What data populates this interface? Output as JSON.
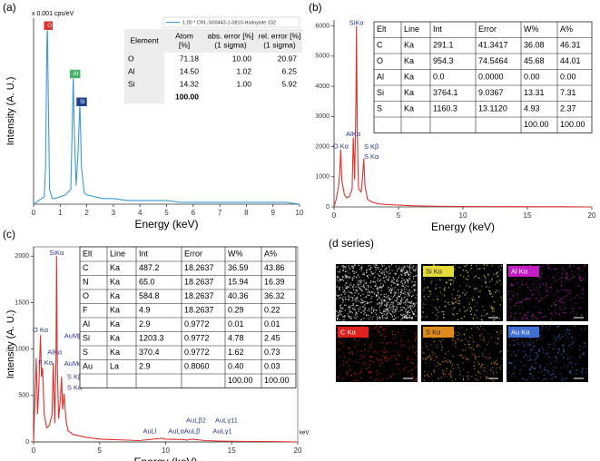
{
  "chart_data": [
    {
      "type": "line",
      "panel": "(a)",
      "y_unit": "x 0.001 cps/eV",
      "x_label": "Energy (keV)",
      "y_label": "Intensity (A. U.)",
      "x": [
        0,
        0.1,
        0.2,
        0.3,
        0.4,
        0.45,
        0.5,
        0.52,
        0.55,
        0.6,
        0.7,
        0.8,
        1.0,
        1.2,
        1.4,
        1.45,
        1.49,
        1.53,
        1.6,
        1.68,
        1.74,
        1.8,
        1.9,
        2.0,
        2.3,
        2.6,
        3.0,
        3.5,
        4.0,
        4.5,
        5.0,
        5.5,
        6.0,
        6.5,
        7.0,
        7.5,
        8.0,
        8.5,
        9.0,
        9.5,
        10
      ],
      "series": [
        {
          "name": "1.00 * CRL-S00443-1-0810-Halloysite 232",
          "color": "#3a9bd5",
          "values": [
            0,
            1,
            2,
            3,
            4,
            20,
            85,
            96,
            60,
            8,
            3,
            3,
            4,
            5,
            8,
            40,
            70,
            40,
            10,
            30,
            55,
            20,
            6,
            5,
            4,
            3,
            3,
            2,
            2,
            2,
            2,
            1,
            1,
            1,
            1,
            1,
            1,
            1,
            1,
            1,
            0
          ]
        }
      ],
      "xlim": [
        0,
        10
      ],
      "xticks": [
        0,
        1,
        2,
        3,
        4,
        5,
        6,
        7,
        8,
        9,
        10
      ],
      "ylim": [
        0,
        100
      ],
      "annotations": [
        {
          "text": "O",
          "x": 0.52,
          "y": 96,
          "color": "#e0302c"
        },
        {
          "text": "Al",
          "x": 1.49,
          "y": 70,
          "color": "#49b36a"
        },
        {
          "text": "Si",
          "x": 1.74,
          "y": 55,
          "color": "#1f3f8f"
        }
      ],
      "table": {
        "columns": [
          [
            "Element"
          ],
          [
            "Atom",
            "[%]"
          ],
          [
            "abs. error [%]",
            "(1 sigma)"
          ],
          [
            "rel. error [%]",
            "(1 sigma)"
          ]
        ],
        "rows": [
          [
            "O",
            "71.18",
            "10.00",
            "20.97"
          ],
          [
            "Al",
            "14.50",
            "1.02",
            "6.25"
          ],
          [
            "Si",
            "14.32",
            "1.00",
            "5.92"
          ],
          [
            null,
            "100.00",
            null,
            null
          ]
        ]
      }
    },
    {
      "type": "line",
      "panel": "(b)",
      "x_label": "Energy (keV)",
      "x": [
        0,
        0.2,
        0.35,
        0.45,
        0.52,
        0.6,
        0.8,
        1.0,
        1.2,
        1.4,
        1.49,
        1.6,
        1.7,
        1.74,
        1.8,
        1.9,
        2.1,
        2.2,
        2.3,
        2.4,
        2.6,
        3.0,
        3.5,
        4,
        5,
        6,
        7,
        8,
        10,
        12,
        14,
        16,
        18,
        20
      ],
      "series": [
        {
          "name": "spectrum",
          "color": "#e0302c",
          "values": [
            0,
            300,
            700,
            1200,
            1900,
            900,
            400,
            300,
            350,
            600,
            2300,
            900,
            3500,
            6000,
            2500,
            600,
            500,
            900,
            1600,
            700,
            250,
            150,
            100,
            80,
            60,
            40,
            30,
            20,
            15,
            10,
            10,
            5,
            5,
            0
          ]
        }
      ],
      "xlim": [
        0,
        20
      ],
      "xticks": [
        0,
        5,
        10,
        15,
        20
      ],
      "ylim": [
        0,
        6200
      ],
      "yticks": [
        0,
        1000,
        2000,
        3000,
        4000,
        5000,
        6000
      ],
      "annotations": [
        {
          "text": "SiKα",
          "x": 1.74,
          "y": 6100,
          "color": "#2b3a8f"
        },
        {
          "text": "AlKα",
          "x": 1.49,
          "y": 2400,
          "color": "#2b3a8f"
        },
        {
          "text": "O Kα",
          "x": 0.52,
          "y": 2000,
          "color": "#2b3a8f"
        },
        {
          "text": "S Kβ",
          "x": 2.9,
          "y": 1980,
          "color": "#2b3a8f"
        },
        {
          "text": "S Kα",
          "x": 2.9,
          "y": 1650,
          "color": "#2b3a8f"
        }
      ],
      "table": {
        "columns": [
          [
            "Elt"
          ],
          [
            "Line"
          ],
          [
            "Int"
          ],
          [
            "Error"
          ],
          [
            "W%"
          ],
          [
            "A%"
          ]
        ],
        "rows": [
          [
            "C",
            "Ka",
            "291.1",
            "41.3417",
            "36.08",
            "46.31"
          ],
          [
            "O",
            "Ka",
            "954.3",
            "74.5464",
            "45.68",
            "44.01"
          ],
          [
            "Al",
            "Ka",
            "0.0",
            "0.0000",
            "0.00",
            "0.00"
          ],
          [
            "Si",
            "Ka",
            "3764.1",
            "9.0367",
            "13.31",
            "7.31"
          ],
          [
            "S",
            "Ka",
            "1160.3",
            "13.1120",
            "4.93",
            "2.37"
          ],
          [
            null,
            null,
            null,
            null,
            "100.00",
            "100.00"
          ]
        ]
      }
    },
    {
      "type": "line",
      "panel": "(c)",
      "x_label": "Energy (keV)",
      "x_unit": "keV",
      "y_label": "Intensity (A. U.)",
      "x": [
        0,
        0.2,
        0.3,
        0.4,
        0.52,
        0.6,
        0.68,
        0.8,
        1.0,
        1.2,
        1.4,
        1.49,
        1.6,
        1.7,
        1.74,
        1.8,
        1.9,
        2.05,
        2.12,
        2.2,
        2.31,
        2.45,
        2.6,
        3,
        4,
        5,
        6,
        8,
        9.7,
        10,
        11.4,
        11.6,
        12,
        13,
        14,
        16,
        18,
        20
      ],
      "series": [
        {
          "name": "spectrum",
          "color": "#e0302c",
          "values": [
            0,
            900,
            300,
            600,
            1150,
            700,
            800,
            300,
            150,
            180,
            300,
            850,
            200,
            900,
            2000,
            800,
            250,
            500,
            700,
            350,
            520,
            250,
            120,
            80,
            50,
            30,
            25,
            15,
            40,
            30,
            25,
            20,
            30,
            15,
            10,
            5,
            5,
            0
          ]
        }
      ],
      "xlim": [
        0,
        20
      ],
      "xticks": [
        0,
        5,
        10,
        15,
        20
      ],
      "ylim": [
        0,
        2100
      ],
      "yticks": [
        0,
        500,
        1000,
        1500,
        2000
      ],
      "annotations": [
        {
          "text": "SiKα",
          "x": 1.74,
          "y": 2030,
          "color": "#2b3a8f"
        },
        {
          "text": "O Kα",
          "x": 0.52,
          "y": 1200,
          "color": "#2b3a8f"
        },
        {
          "text": "AlKα",
          "x": 1.6,
          "y": 960,
          "color": "#2b3a8f"
        },
        {
          "text": "F Kα",
          "x": 0.9,
          "y": 850,
          "color": "#2b3a8f"
        },
        {
          "text": "AuMβ",
          "x": 3.0,
          "y": 1140,
          "color": "#2b3a8f"
        },
        {
          "text": "AuMα",
          "x": 3.0,
          "y": 840,
          "color": "#2b3a8f"
        },
        {
          "text": "S Kβ",
          "x": 3.1,
          "y": 700,
          "color": "#2b3a8f"
        },
        {
          "text": "S Kα",
          "x": 3.1,
          "y": 580,
          "color": "#2b3a8f"
        },
        {
          "text": "AuLl",
          "x": 8.8,
          "y": 110,
          "color": "#2b3a8f"
        },
        {
          "text": "AuLα",
          "x": 10.8,
          "y": 110,
          "color": "#2b3a8f"
        },
        {
          "text": "AuLβ2",
          "x": 12.3,
          "y": 230,
          "color": "#2b3a8f"
        },
        {
          "text": "AuLβ",
          "x": 12.0,
          "y": 110,
          "color": "#2b3a8f"
        },
        {
          "text": "AuLγ11",
          "x": 14.6,
          "y": 230,
          "color": "#2b3a8f"
        },
        {
          "text": "AuLγ1",
          "x": 14.3,
          "y": 110,
          "color": "#2b3a8f"
        }
      ],
      "table": {
        "columns": [
          [
            "Elt"
          ],
          [
            "Line"
          ],
          [
            "Int"
          ],
          [
            "Error"
          ],
          [
            "W%"
          ],
          [
            "A%"
          ]
        ],
        "rows": [
          [
            "C",
            "Ka",
            "487.2",
            "18.2637",
            "36.59",
            "43.86"
          ],
          [
            "N",
            "Ka",
            "65.0",
            "18.2637",
            "15.94",
            "16.39"
          ],
          [
            "O",
            "Ka",
            "584.8",
            "18.2637",
            "40.36",
            "36.32"
          ],
          [
            "F",
            "Ka",
            "4.9",
            "18.2637",
            "0.29",
            "0.22"
          ],
          [
            "Al",
            "Ka",
            "2.9",
            "0.9772",
            "0.01",
            "0.01"
          ],
          [
            "Si",
            "Ka",
            "1203.3",
            "0.9772",
            "4.78",
            "2.45"
          ],
          [
            "S",
            "Ka",
            "370.4",
            "0.9772",
            "1.62",
            "0.73"
          ],
          [
            "Au",
            "La",
            "2.9",
            "0.8060",
            "0.40",
            "0.03"
          ],
          [
            null,
            null,
            null,
            null,
            "100.00",
            "100.00"
          ]
        ]
      }
    }
  ],
  "panel_d": {
    "title": "(d series)",
    "maps": [
      {
        "label": null,
        "color": "#e8e8e8"
      },
      {
        "label": "Si Kα",
        "color": "#e4dc3a"
      },
      {
        "label": "Al Kα",
        "color": "#c21cc2"
      },
      {
        "label": "C Kα",
        "color": "#e0201c"
      },
      {
        "label": "S Kα",
        "color": "#e08a1c"
      },
      {
        "label": "Au Kα",
        "color": "#3f6fd6"
      }
    ]
  }
}
